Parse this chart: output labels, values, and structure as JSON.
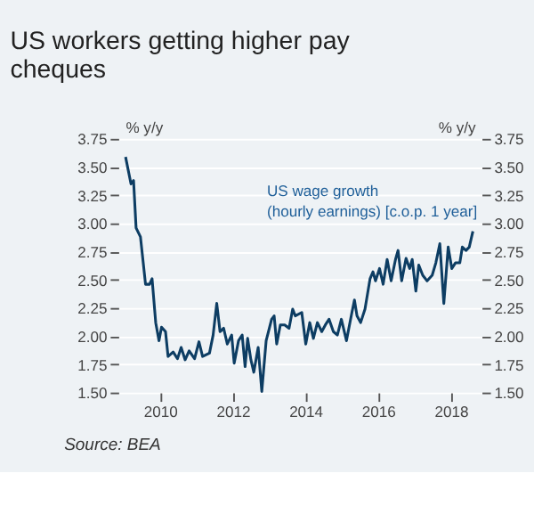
{
  "chart_data": {
    "type": "line",
    "title": "US workers getting higher pay cheques",
    "ylabel": "% y/y",
    "y2label": "% y/y",
    "annotations": [
      "Source: BEA"
    ],
    "series": [
      {
        "name": "US wage growth (hourly earnings) [c.o.p. 1 year]",
        "color": "#0d3d63",
        "x": [
          2009.05,
          2009.2,
          2009.27,
          2009.34,
          2009.46,
          2009.6,
          2009.71,
          2009.78,
          2009.88,
          2009.97,
          2010.04,
          2010.15,
          2010.22,
          2010.36,
          2010.48,
          2010.58,
          2010.69,
          2010.8,
          2010.95,
          2011.07,
          2011.17,
          2011.36,
          2011.46,
          2011.56,
          2011.65,
          2011.75,
          2011.85,
          2011.97,
          2012.04,
          2012.16,
          2012.26,
          2012.34,
          2012.41,
          2012.5,
          2012.58,
          2012.7,
          2012.8,
          2012.92,
          2013.07,
          2013.14,
          2013.21,
          2013.31,
          2013.43,
          2013.55,
          2013.65,
          2013.72,
          2013.9,
          2014.01,
          2014.12,
          2014.22,
          2014.33,
          2014.45,
          2014.55,
          2014.65,
          2014.77,
          2014.88,
          2014.99,
          2015.13,
          2015.28,
          2015.35,
          2015.42,
          2015.52,
          2015.64,
          2015.78,
          2015.86,
          2015.93,
          2016.04,
          2016.14,
          2016.25,
          2016.36,
          2016.48,
          2016.55,
          2016.65,
          2016.77,
          2016.87,
          2016.94,
          2017.04,
          2017.12,
          2017.23,
          2017.35,
          2017.49,
          2017.59,
          2017.7,
          2017.81,
          2017.93,
          2018.03,
          2018.13,
          2018.25,
          2018.32,
          2018.42,
          2018.51,
          2018.61
        ],
        "values": [
          3.59,
          3.35,
          3.38,
          2.96,
          2.88,
          2.46,
          2.46,
          2.51,
          2.12,
          1.96,
          2.08,
          2.04,
          1.82,
          1.86,
          1.8,
          1.9,
          1.79,
          1.87,
          1.8,
          1.95,
          1.82,
          1.85,
          2.01,
          2.29,
          2.04,
          2.07,
          1.93,
          2.01,
          1.76,
          1.96,
          2.01,
          1.73,
          1.98,
          1.79,
          1.68,
          1.9,
          1.51,
          1.96,
          2.15,
          2.18,
          1.93,
          2.1,
          2.1,
          2.07,
          2.24,
          2.18,
          2.21,
          1.93,
          2.12,
          1.98,
          2.12,
          2.04,
          2.1,
          2.15,
          2.04,
          2.01,
          2.15,
          1.96,
          2.21,
          2.32,
          2.18,
          2.12,
          2.24,
          2.51,
          2.57,
          2.49,
          2.6,
          2.46,
          2.68,
          2.49,
          2.68,
          2.76,
          2.49,
          2.69,
          2.6,
          2.68,
          2.4,
          2.63,
          2.54,
          2.49,
          2.54,
          2.65,
          2.82,
          2.29,
          2.79,
          2.6,
          2.65,
          2.65,
          2.79,
          2.76,
          2.79,
          2.93
        ]
      }
    ],
    "xlim": [
      2008.85,
      2018.85
    ],
    "xticks": [
      2010,
      2012,
      2014,
      2016,
      2018
    ],
    "ylim": [
      1.5,
      3.75
    ],
    "yticks": [
      {
        "value": 1.5,
        "label": "1.50"
      },
      1.75,
      {
        "value": 2,
        "label": "2.00"
      },
      2.25,
      {
        "value": 2.5,
        "label": "2.50"
      },
      2.75,
      {
        "value": 3,
        "label": "3.00"
      },
      3.25,
      {
        "value": 3.5,
        "label": "3.50"
      },
      3.75
    ],
    "y2lim": [
      1.5,
      3.75
    ],
    "y2ticks": [
      {
        "value": 1.5,
        "label": "1.50"
      },
      1.75,
      {
        "value": 2,
        "label": "2.00"
      },
      2.25,
      {
        "value": 2.5,
        "label": "2.50"
      },
      2.75,
      {
        "value": 3,
        "label": "3.00"
      },
      3.25,
      {
        "value": 3.5,
        "label": "3.50"
      },
      3.75
    ],
    "grid": "y",
    "marker": "none",
    "line_style": "solid"
  }
}
